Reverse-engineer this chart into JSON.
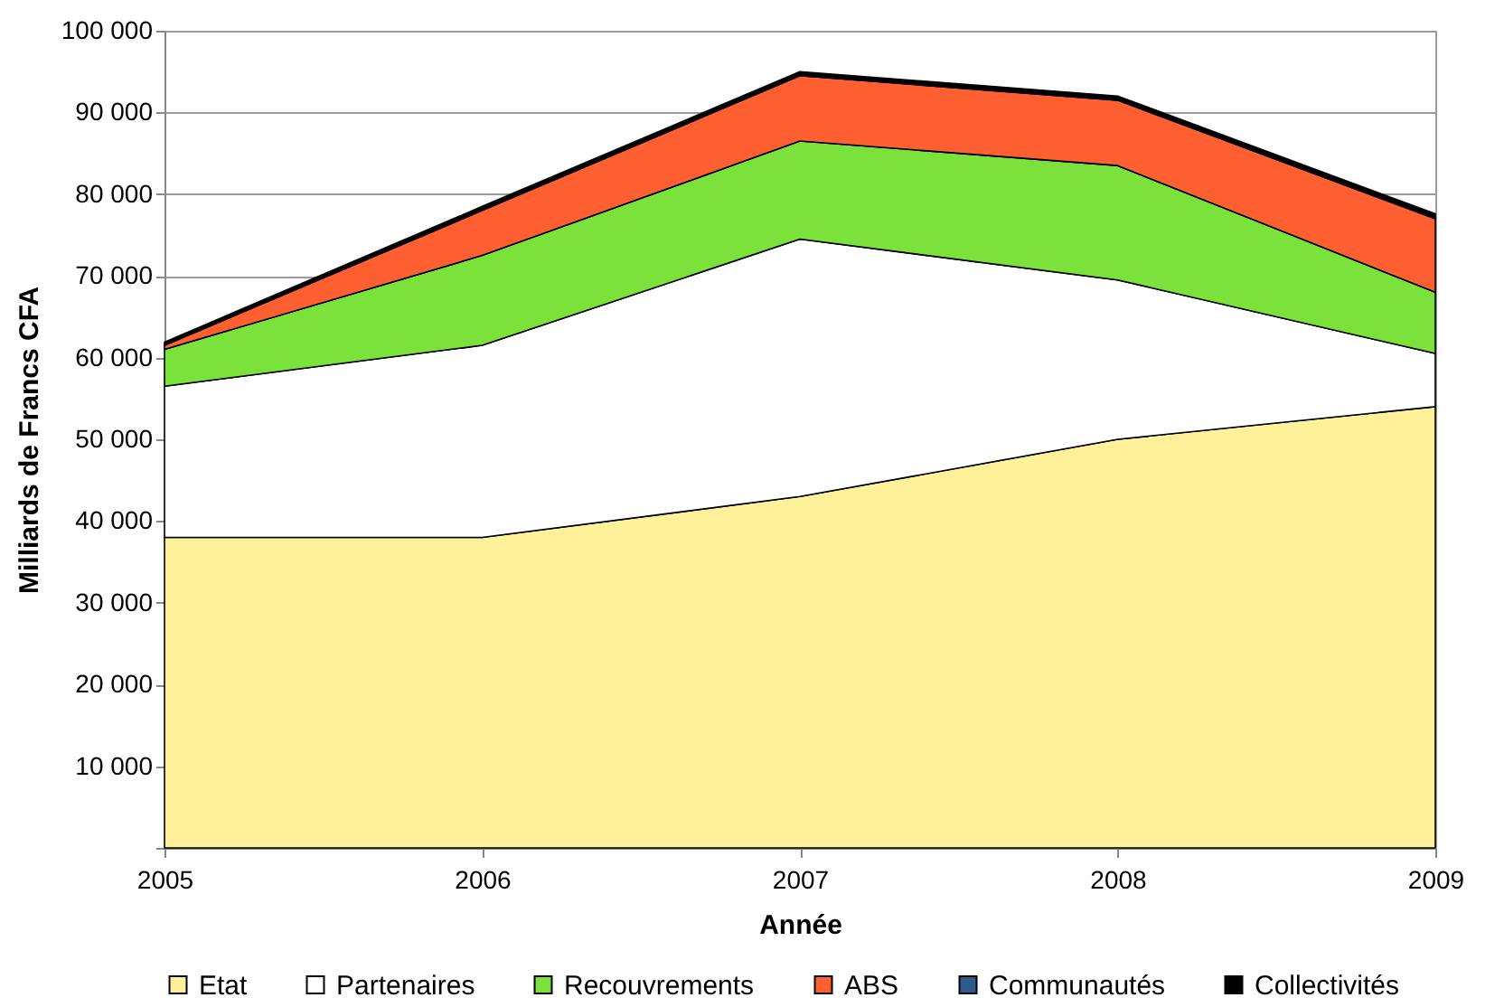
{
  "chart_data": {
    "type": "area",
    "stacked": true,
    "xlabel": "Année",
    "ylabel": "Milliards de Francs CFA",
    "x": [
      2005,
      2006,
      2007,
      2008,
      2009
    ],
    "series": [
      {
        "name": "Etat",
        "color": "#fff09a",
        "values": [
          38000,
          38000,
          43000,
          50000,
          54000
        ]
      },
      {
        "name": "Partenaires",
        "color": "#ffffff",
        "values": [
          18500,
          23500,
          31500,
          19500,
          6500
        ]
      },
      {
        "name": "Recouvrements",
        "color": "#7ae23a",
        "values": [
          4500,
          11000,
          12000,
          14000,
          7500
        ]
      },
      {
        "name": "ABS",
        "color": "#ff5f31",
        "values": [
          500,
          5500,
          8000,
          8000,
          9000
        ]
      },
      {
        "name": "Communautés",
        "color": "#2f5a8f",
        "values": [
          100,
          100,
          100,
          100,
          100
        ]
      },
      {
        "name": "Collectivités",
        "color": "#000000",
        "values": [
          300,
          400,
          400,
          400,
          500
        ]
      }
    ],
    "xlim": [
      2005,
      2009
    ],
    "xticks": [
      2005,
      2006,
      2007,
      2008,
      2009
    ],
    "ylim": [
      0,
      100000
    ],
    "yticks": [
      {
        "value": 0,
        "label": null
      },
      {
        "value": 10000,
        "label": "10 000"
      },
      {
        "value": 20000,
        "label": "20 000"
      },
      {
        "value": 30000,
        "label": "30 000"
      },
      {
        "value": 40000,
        "label": "40 000"
      },
      {
        "value": 50000,
        "label": "50 000"
      },
      {
        "value": 60000,
        "label": "60 000"
      },
      {
        "value": 70000,
        "label": "70 000"
      },
      {
        "value": 80000,
        "label": "80 000"
      },
      {
        "value": 90000,
        "label": "90 000"
      },
      {
        "value": 100000,
        "label": "100 000"
      }
    ],
    "grid": "y",
    "legend": "bottom"
  }
}
